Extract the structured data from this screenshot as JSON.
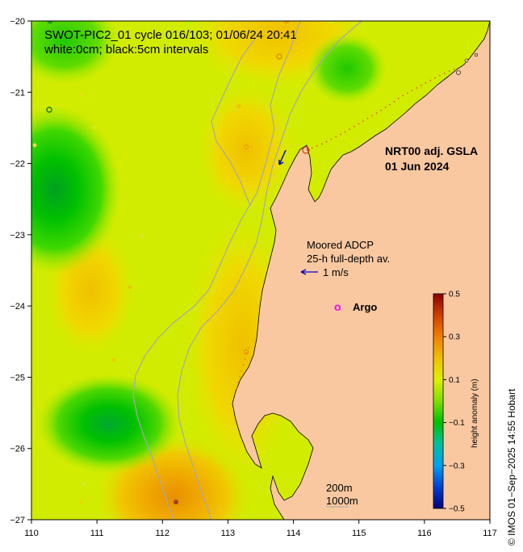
{
  "header": {
    "title_line1": "SWOT-PIC2_01 cycle 016/103; 01/06/24 20:41",
    "title_line2": "white:0cm; black:5cm intervals"
  },
  "product": {
    "line1": "NRT00 adj. GSLA",
    "line2": "01 Jun 2024"
  },
  "adcp": {
    "line1": "Moored ADCP",
    "line2": "25-h full-depth av.",
    "scale_label": "1 m/s",
    "arrow_color": "#0000cc"
  },
  "argo": {
    "marker": "o",
    "label": "Argo",
    "color": "#ff00ff"
  },
  "contours": {
    "label_200": "200m",
    "label_1000": "1000m"
  },
  "axes": {
    "x_ticks": [
      "110",
      "111",
      "112",
      "113",
      "114",
      "115",
      "116",
      "117"
    ],
    "y_ticks": [
      "−20",
      "−21",
      "−22",
      "−23",
      "−24",
      "−25",
      "−26",
      "−27"
    ]
  },
  "colorbar": {
    "title": "height anomaly (m)",
    "ticks": [
      "0.5",
      "0.3",
      "0.1",
      "−0.1",
      "−0.3",
      "−0.5"
    ],
    "range": [
      -0.5,
      0.5
    ]
  },
  "copyright": "©  IMOS 01−Sep−2025 14:55 Hobart",
  "colors": {
    "land": "#f9c8a0",
    "sea_background": "#c8f000",
    "high": "#f0b000",
    "low": "#00c000"
  }
}
